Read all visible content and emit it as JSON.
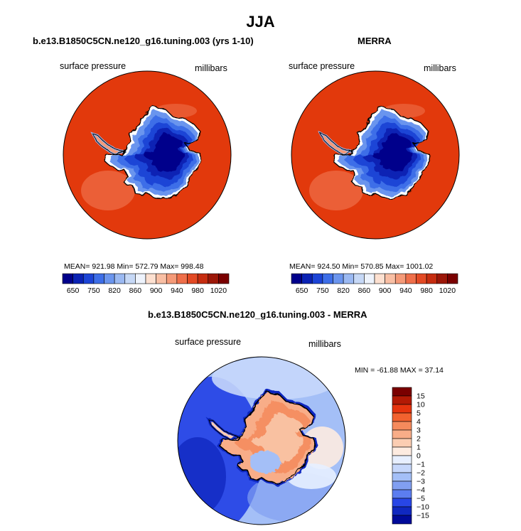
{
  "header": {
    "title": "JJA"
  },
  "panels": {
    "left": {
      "title": "b.e13.B1850C5CN.ne120_g16.tuning.003 (yrs 1-10)",
      "variable": "surface pressure",
      "units": "millibars",
      "stats": "MEAN= 921.98   Min= 572.79   Max= 998.48"
    },
    "right": {
      "title": "MERRA",
      "variable": "surface pressure",
      "units": "millibars",
      "stats": "MEAN= 924.50   Min= 570.85   Max= 1001.02"
    },
    "diff": {
      "title": "b.e13.B1850C5CN.ne120_g16.tuning.003 - MERRA",
      "variable": "surface pressure",
      "units": "millibars",
      "stats": "MIN = -61.88 MAX =  37.14"
    }
  },
  "chart_data": [
    {
      "type": "heatmap",
      "projection": "south-polar-stereographic",
      "title": "b.e13.B1850C5CN.ne120_g16.tuning.003 (yrs 1-10)",
      "field": "surface pressure",
      "units": "millibars",
      "mean": 921.98,
      "min": 572.79,
      "max": 998.48,
      "colorbar_ticks": [
        "650",
        "750",
        "820",
        "860",
        "900",
        "940",
        "980",
        "1020"
      ]
    },
    {
      "type": "heatmap",
      "projection": "south-polar-stereographic",
      "title": "MERRA",
      "field": "surface pressure",
      "units": "millibars",
      "mean": 924.5,
      "min": 570.85,
      "max": 1001.02,
      "colorbar_ticks": [
        "650",
        "750",
        "820",
        "860",
        "900",
        "940",
        "980",
        "1020"
      ]
    },
    {
      "type": "heatmap",
      "projection": "south-polar-stereographic",
      "title": "b.e13.B1850C5CN.ne120_g16.tuning.003 - MERRA",
      "field": "surface pressure",
      "units": "millibars",
      "min": -61.88,
      "max": 37.14,
      "colorbar_ticks": [
        "15",
        "10",
        "5",
        "4",
        "3",
        "2",
        "1",
        "0",
        "-1",
        "-2",
        "-3",
        "-4",
        "-5",
        "-10",
        "-15"
      ]
    }
  ],
  "colors": {
    "abs_levels": [
      "#00008b",
      "#0a22b4",
      "#1c44d6",
      "#3d6ee8",
      "#6b95ee",
      "#9bb9f2",
      "#c6d8f6",
      "#eef3fc",
      "#fde0d0",
      "#f9bfa4",
      "#f59a78",
      "#ef6f4a",
      "#e34a24",
      "#c62d10",
      "#9c1708",
      "#7a0000"
    ],
    "diff_levels": [
      "#7a0000",
      "#b31a05",
      "#e6340e",
      "#f2622f",
      "#f58a5c",
      "#f8ad88",
      "#fbcdb2",
      "#fdebe0",
      "#e7efff",
      "#c6d7fb",
      "#a4bff7",
      "#819ff1",
      "#5c7df0",
      "#2846e6",
      "#1028c0",
      "#000a99"
    ],
    "ocean": "#e2390c",
    "diff_ocean": "#4a6fe6"
  }
}
